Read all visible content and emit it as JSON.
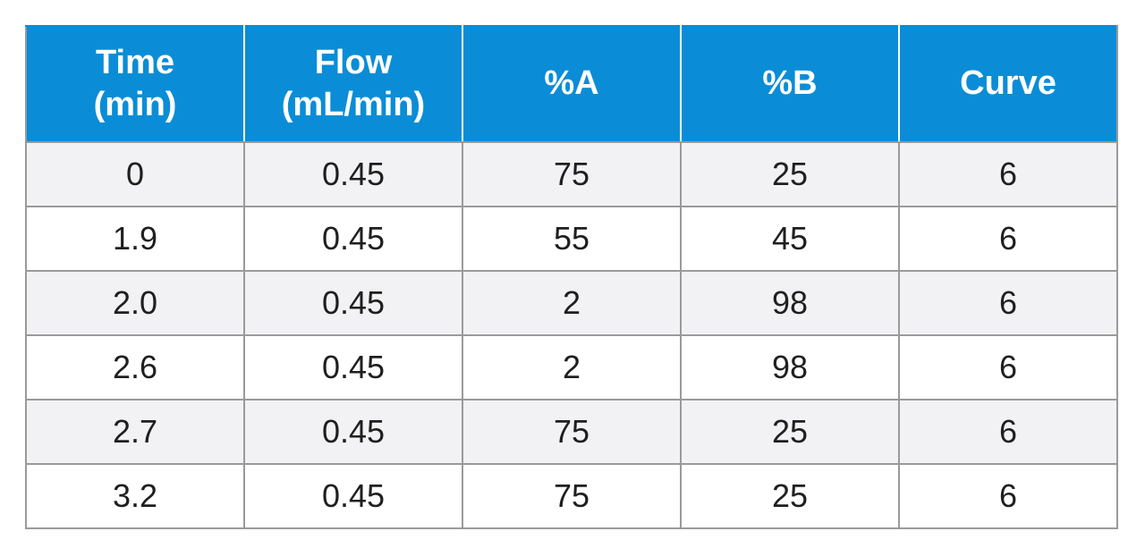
{
  "colors": {
    "header_background": "#0a8dd6",
    "header_text": "#ffffff",
    "row_alt_background": "#f2f2f4",
    "grid_line": "#9a9a9a"
  },
  "table": {
    "headers": [
      [
        "Time",
        "(min)"
      ],
      [
        "Flow",
        "(mL/min)"
      ],
      [
        "%A"
      ],
      [
        "%B"
      ],
      [
        "Curve"
      ]
    ],
    "rows": [
      [
        "0",
        "0.45",
        "75",
        "25",
        "6"
      ],
      [
        "1.9",
        "0.45",
        "55",
        "45",
        "6"
      ],
      [
        "2.0",
        "0.45",
        "2",
        "98",
        "6"
      ],
      [
        "2.6",
        "0.45",
        "2",
        "98",
        "6"
      ],
      [
        "2.7",
        "0.45",
        "75",
        "25",
        "6"
      ],
      [
        "3.2",
        "0.45",
        "75",
        "25",
        "6"
      ]
    ]
  }
}
